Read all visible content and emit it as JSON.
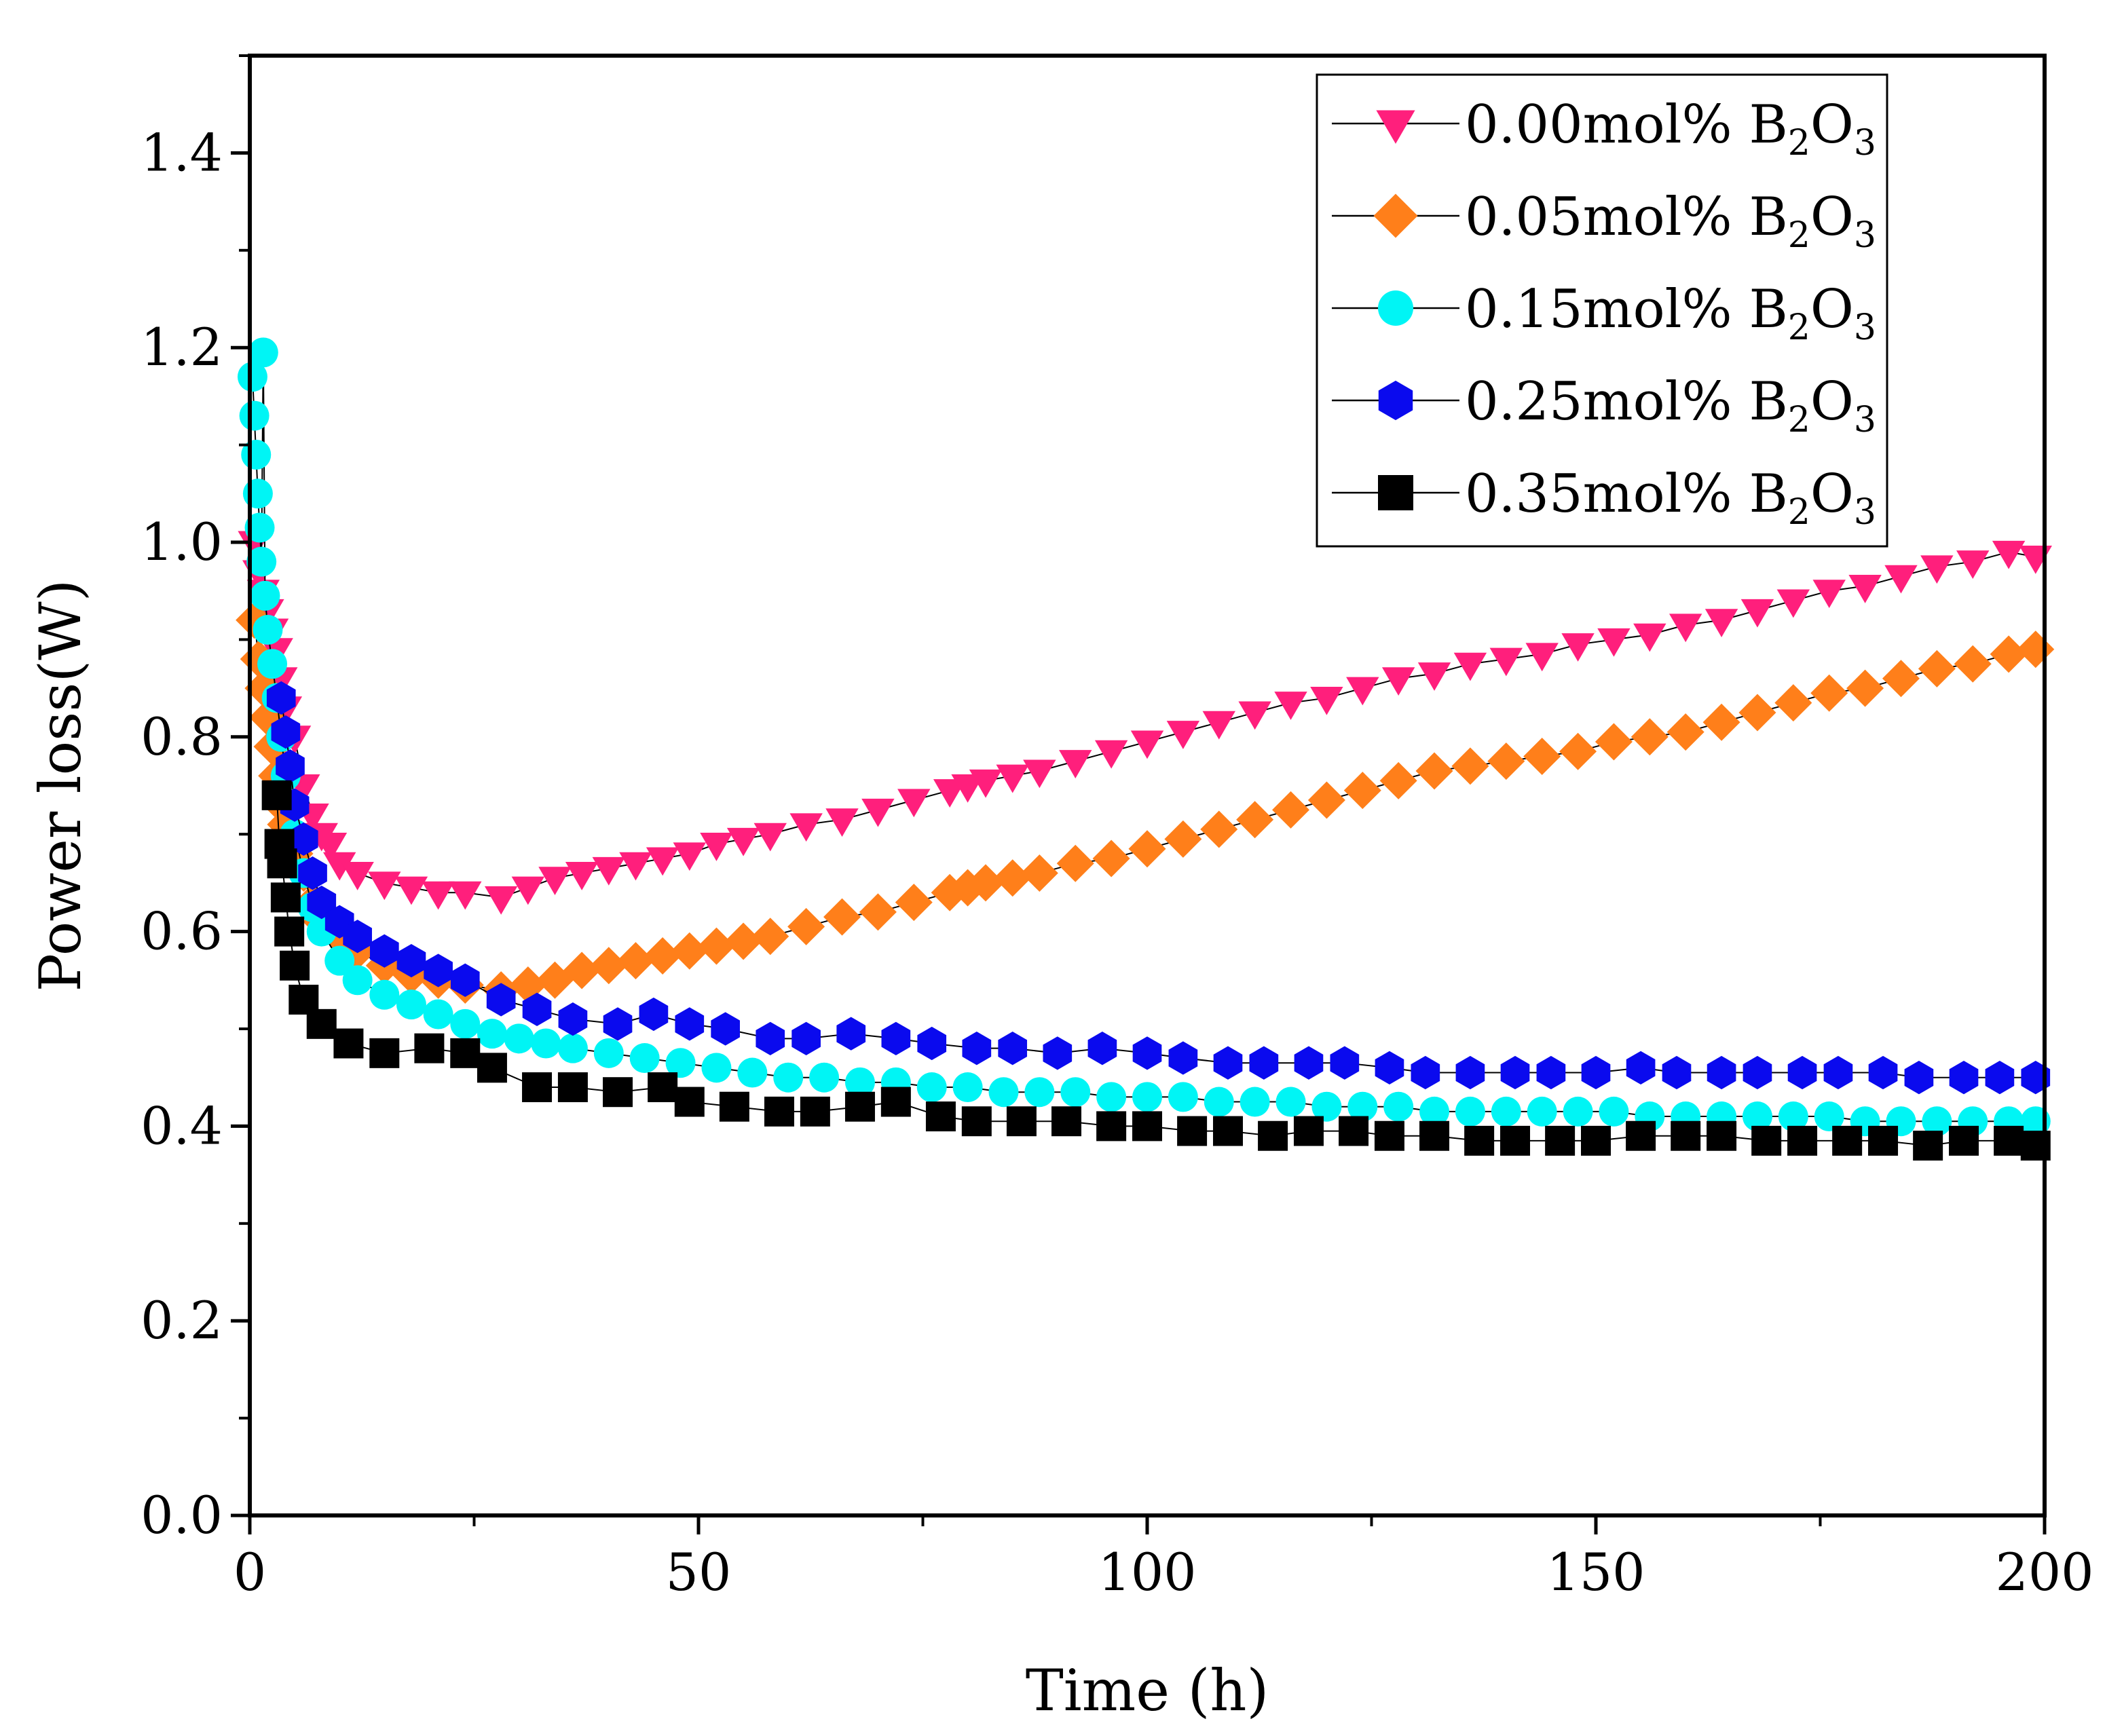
{
  "chart_data": {
    "type": "scatter",
    "title": "",
    "xlabel": "Time (h)",
    "ylabel": "Power loss(W)",
    "xlim": [
      0,
      200
    ],
    "ylim": [
      0,
      1.5
    ],
    "xticks": [
      0,
      50,
      100,
      150,
      200
    ],
    "xtick_labels": [
      "0",
      "50",
      "100",
      "150",
      "200"
    ],
    "yticks": [
      0.0,
      0.2,
      0.4,
      0.6,
      0.8,
      1.0,
      1.2,
      1.4
    ],
    "ytick_labels": [
      "0.0",
      "0.2",
      "0.4",
      "0.6",
      "0.8",
      "1.0",
      "1.2",
      "1.4"
    ],
    "grid": false,
    "legend_position": "top-right",
    "series": [
      {
        "name": "0.00mol% B2O3",
        "label_main": "0.00mol% B",
        "label_sub1": "2",
        "label_mid": "O",
        "label_sub2": "3",
        "marker": "triangle-down",
        "color": "#ff1f7c",
        "x": [
          0.5,
          1,
          1.5,
          2,
          2.5,
          3,
          3.5,
          4,
          5,
          6,
          7,
          8,
          9,
          10,
          12,
          15,
          18,
          21,
          24,
          28,
          31,
          34,
          37,
          40,
          43,
          46,
          49,
          52,
          55,
          58,
          62,
          66,
          70,
          74,
          78,
          80,
          82,
          85,
          88,
          92,
          96,
          100,
          104,
          108,
          112,
          116,
          120,
          124,
          128,
          132,
          136,
          140,
          144,
          148,
          152,
          156,
          160,
          164,
          168,
          172,
          176,
          180,
          184,
          188,
          192,
          196,
          199
        ],
        "y": [
          1.0,
          0.97,
          0.95,
          0.93,
          0.91,
          0.89,
          0.86,
          0.83,
          0.8,
          0.75,
          0.72,
          0.7,
          0.69,
          0.67,
          0.66,
          0.65,
          0.645,
          0.64,
          0.64,
          0.635,
          0.645,
          0.655,
          0.66,
          0.665,
          0.67,
          0.675,
          0.68,
          0.69,
          0.695,
          0.7,
          0.71,
          0.715,
          0.725,
          0.735,
          0.745,
          0.75,
          0.755,
          0.76,
          0.765,
          0.775,
          0.785,
          0.795,
          0.805,
          0.815,
          0.825,
          0.835,
          0.84,
          0.85,
          0.86,
          0.865,
          0.875,
          0.88,
          0.885,
          0.895,
          0.9,
          0.905,
          0.915,
          0.92,
          0.93,
          0.94,
          0.95,
          0.955,
          0.965,
          0.975,
          0.98,
          0.99,
          0.985
        ]
      },
      {
        "name": "0.05mol% B2O3",
        "label_main": "0.05mol% B",
        "label_sub1": "2",
        "label_mid": "O",
        "label_sub2": "3",
        "marker": "diamond",
        "color": "#ff7f1a",
        "x": [
          0.5,
          1,
          1.5,
          2,
          2.5,
          3,
          3.5,
          4,
          5,
          6,
          7,
          8,
          10,
          12,
          15,
          18,
          21,
          24,
          28,
          31,
          34,
          37,
          40,
          43,
          46,
          49,
          52,
          55,
          58,
          62,
          66,
          70,
          74,
          78,
          80,
          82,
          85,
          88,
          92,
          96,
          100,
          104,
          108,
          112,
          116,
          120,
          124,
          128,
          132,
          136,
          140,
          144,
          148,
          152,
          156,
          160,
          164,
          168,
          172,
          176,
          180,
          184,
          188,
          192,
          196,
          199
        ],
        "y": [
          0.92,
          0.88,
          0.85,
          0.82,
          0.79,
          0.76,
          0.73,
          0.71,
          0.68,
          0.66,
          0.63,
          0.61,
          0.595,
          0.58,
          0.565,
          0.555,
          0.55,
          0.545,
          0.54,
          0.545,
          0.55,
          0.56,
          0.565,
          0.57,
          0.575,
          0.58,
          0.585,
          0.59,
          0.595,
          0.605,
          0.615,
          0.62,
          0.63,
          0.64,
          0.645,
          0.65,
          0.655,
          0.66,
          0.67,
          0.675,
          0.685,
          0.695,
          0.705,
          0.715,
          0.725,
          0.735,
          0.745,
          0.755,
          0.765,
          0.77,
          0.775,
          0.78,
          0.785,
          0.795,
          0.8,
          0.805,
          0.815,
          0.825,
          0.835,
          0.845,
          0.85,
          0.86,
          0.87,
          0.875,
          0.885,
          0.89
        ]
      },
      {
        "name": "0.15mol% B2O3",
        "label_main": "0.15mol% B",
        "label_sub1": "2",
        "label_mid": "O",
        "label_sub2": "3",
        "marker": "circle",
        "color": "#00f5f5",
        "x": [
          0.3,
          0.5,
          0.7,
          0.9,
          1.1,
          1.3,
          1.5,
          1.7,
          2,
          2.5,
          3,
          3.5,
          4,
          5,
          6,
          7,
          8,
          10,
          12,
          15,
          18,
          21,
          24,
          27,
          30,
          33,
          36,
          40,
          44,
          48,
          52,
          56,
          60,
          64,
          68,
          72,
          76,
          80,
          84,
          88,
          92,
          96,
          100,
          104,
          108,
          112,
          116,
          120,
          124,
          128,
          132,
          136,
          140,
          144,
          148,
          152,
          156,
          160,
          164,
          168,
          172,
          176,
          180,
          184,
          188,
          192,
          196,
          199
        ],
        "y": [
          1.17,
          1.13,
          1.09,
          1.05,
          1.015,
          0.98,
          1.195,
          0.945,
          0.91,
          0.875,
          0.84,
          0.8,
          0.76,
          0.7,
          0.66,
          0.625,
          0.6,
          0.57,
          0.55,
          0.535,
          0.525,
          0.515,
          0.505,
          0.495,
          0.49,
          0.485,
          0.48,
          0.475,
          0.47,
          0.465,
          0.46,
          0.455,
          0.45,
          0.45,
          0.445,
          0.445,
          0.44,
          0.44,
          0.435,
          0.435,
          0.435,
          0.43,
          0.43,
          0.43,
          0.425,
          0.425,
          0.425,
          0.42,
          0.42,
          0.42,
          0.415,
          0.415,
          0.415,
          0.415,
          0.415,
          0.415,
          0.41,
          0.41,
          0.41,
          0.41,
          0.41,
          0.41,
          0.405,
          0.405,
          0.405,
          0.405,
          0.405,
          0.405
        ]
      },
      {
        "name": "0.25mol% B2O3",
        "label_main": "0.25mol% B",
        "label_sub1": "2",
        "label_mid": "O",
        "label_sub2": "3",
        "marker": "hexagon",
        "color": "#0a0aee",
        "x": [
          3.5,
          4,
          4.5,
          5,
          6,
          7,
          8,
          10,
          12,
          15,
          18,
          21,
          24,
          28,
          32,
          36,
          41,
          45,
          49,
          53,
          58,
          62,
          67,
          72,
          76,
          81,
          85,
          90,
          95,
          100,
          104,
          109,
          113,
          118,
          122,
          127,
          131,
          136,
          141,
          145,
          150,
          155,
          159,
          164,
          168,
          173,
          177,
          182,
          186,
          191,
          195,
          199
        ],
        "y": [
          0.84,
          0.805,
          0.77,
          0.73,
          0.695,
          0.66,
          0.63,
          0.61,
          0.595,
          0.58,
          0.57,
          0.56,
          0.55,
          0.53,
          0.52,
          0.51,
          0.505,
          0.515,
          0.505,
          0.5,
          0.49,
          0.49,
          0.495,
          0.49,
          0.485,
          0.48,
          0.48,
          0.475,
          0.48,
          0.475,
          0.47,
          0.465,
          0.465,
          0.465,
          0.465,
          0.46,
          0.455,
          0.455,
          0.455,
          0.455,
          0.455,
          0.46,
          0.455,
          0.455,
          0.455,
          0.455,
          0.455,
          0.455,
          0.45,
          0.45,
          0.45,
          0.45
        ]
      },
      {
        "name": "0.35mol% B2O3",
        "label_main": "0.35mol% B",
        "label_sub1": "2",
        "label_mid": "O",
        "label_sub2": "3",
        "marker": "square",
        "color": "#000000",
        "x": [
          3,
          3.3,
          3.6,
          4,
          4.4,
          5,
          6,
          8,
          11,
          15,
          20,
          24,
          27,
          32,
          36,
          41,
          46,
          49,
          54,
          59,
          63,
          68,
          72,
          77,
          81,
          86,
          91,
          96,
          100,
          105,
          109,
          114,
          118,
          123,
          127,
          132,
          137,
          141,
          146,
          150,
          155,
          160,
          164,
          169,
          173,
          178,
          182,
          187,
          191,
          196,
          199
        ],
        "y": [
          0.74,
          0.69,
          0.67,
          0.635,
          0.6,
          0.565,
          0.53,
          0.505,
          0.485,
          0.475,
          0.48,
          0.475,
          0.46,
          0.44,
          0.44,
          0.435,
          0.44,
          0.425,
          0.42,
          0.415,
          0.415,
          0.42,
          0.425,
          0.41,
          0.405,
          0.405,
          0.405,
          0.4,
          0.4,
          0.395,
          0.395,
          0.39,
          0.395,
          0.395,
          0.39,
          0.39,
          0.385,
          0.385,
          0.385,
          0.385,
          0.39,
          0.39,
          0.39,
          0.385,
          0.385,
          0.385,
          0.385,
          0.38,
          0.385,
          0.385,
          0.38
        ]
      }
    ]
  }
}
